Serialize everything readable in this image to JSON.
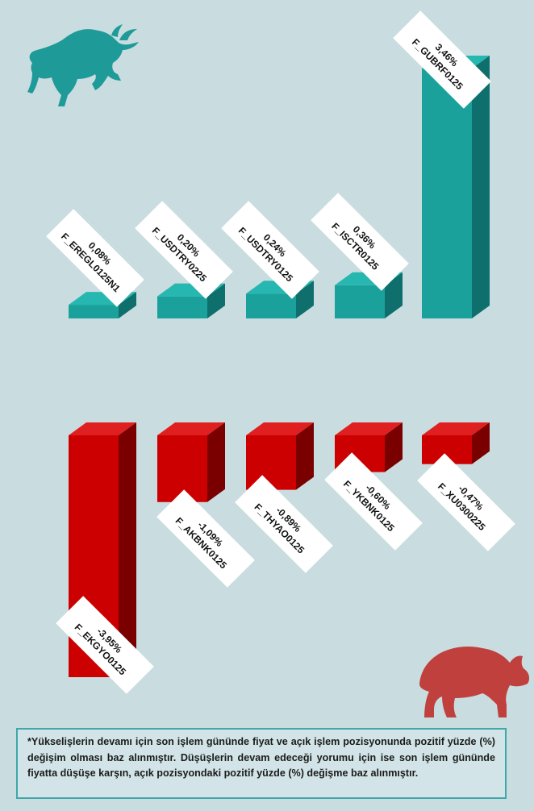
{
  "chart_data": [
    {
      "type": "bar",
      "title": "",
      "xlabel": "",
      "ylabel": "",
      "categories": [
        "F_EREGL0125N1",
        "F_USDTRY0225",
        "F_USDTRY0125",
        "F_ISCTR0125",
        "F_GUBRF0125"
      ],
      "values": [
        0.08,
        0.2,
        0.24,
        0.36,
        3.46
      ],
      "value_labels": [
        "0,08%",
        "0,20%",
        "0,24%",
        "0,36%",
        "3,46%"
      ],
      "ylim": [
        0,
        3.46
      ],
      "color": "#1aa19c",
      "grid": false
    },
    {
      "type": "bar",
      "title": "",
      "xlabel": "",
      "ylabel": "",
      "categories": [
        "F_EKGYO0125",
        "F_AKBNK0125",
        "F_THYAO0125",
        "F_YKBNK0125",
        "F_XU0300225"
      ],
      "values": [
        -3.95,
        -1.09,
        -0.89,
        -0.6,
        -0.47
      ],
      "value_labels": [
        "-3,95%",
        "-1,09%",
        "-0,89%",
        "-0,60%",
        "-0,47%"
      ],
      "ylim": [
        -3.95,
        0
      ],
      "color": "#cc0000",
      "grid": false
    }
  ],
  "icons": {
    "bull": "bull-icon",
    "bear": "bear-icon"
  },
  "colors": {
    "background": "#c9dde0",
    "rise": "#1aa19c",
    "fall": "#cc0000",
    "label_box": "#ffffff"
  },
  "footnote": "*Yükselişlerin devamı için son işlem gününde fiyat ve açık işlem pozisyonunda pozitif yüzde (%) değişim olması baz alınmıştır. Düşüşlerin devam edeceği yorumu için ise son işlem gününde fiyatta düşüşe karşın, açık pozisyondaki pozitif yüzde (%) değişme baz alınmıştır."
}
